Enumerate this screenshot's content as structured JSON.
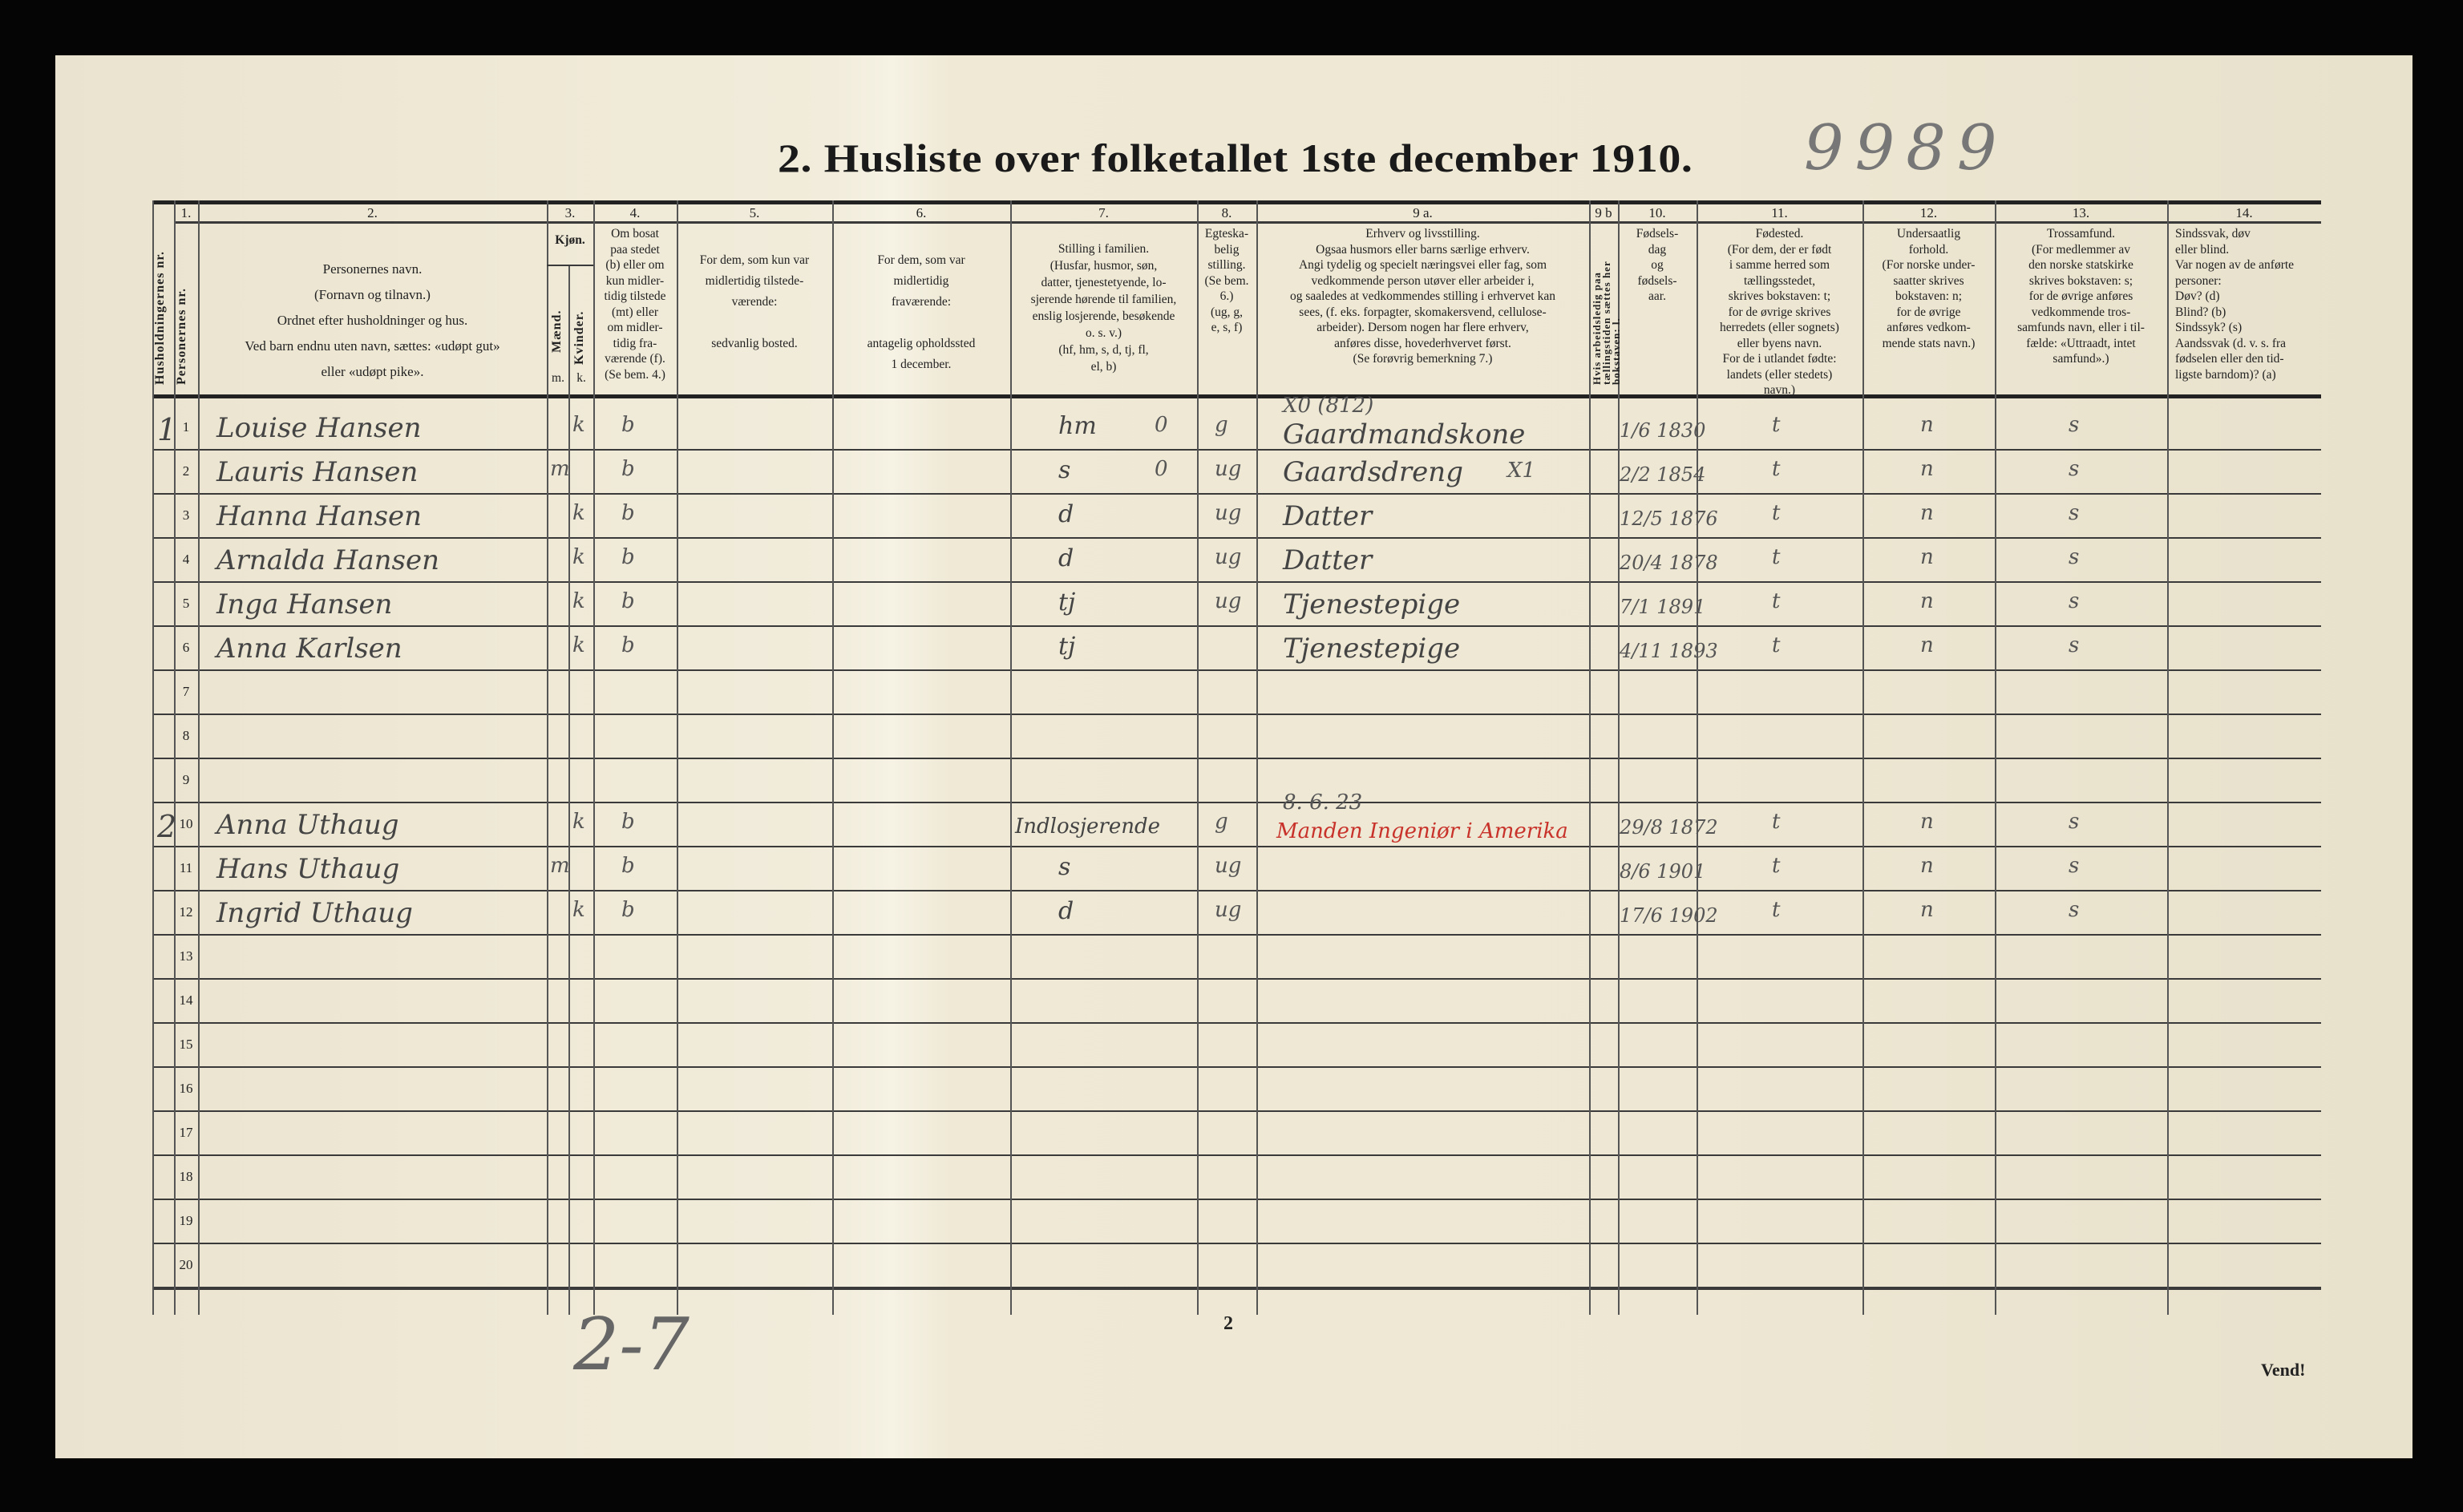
{
  "title": "2.  Husliste over folketallet 1ste december 1910.",
  "pencil_number": "9989",
  "pencil_bottom": "2-7",
  "page_number": "2",
  "turn_over": "Vend!",
  "headers": [
    {
      "key": "household",
      "num": "",
      "vertical": "Husholdningernes nr."
    },
    {
      "key": "person",
      "num": "1.",
      "vertical": "Personernes nr."
    },
    {
      "key": "name",
      "num": "2.",
      "text": "Personernes navn.\n(Fornavn og tilnavn.)\nOrdnet efter husholdninger og hus.\nVed barn endnu uten navn, sættes: «udøpt gut»\neller «udøpt pike»."
    },
    {
      "key": "sex",
      "num": "3.",
      "text": "Kjøn.",
      "sub_m": "Mænd.",
      "sub_k": "Kvinder.",
      "m_label": "m.",
      "k_label": "k."
    },
    {
      "key": "residence",
      "num": "4.",
      "text": "Om bosat\npaa stedet\n(b) eller om\nkun midler-\ntidig tilstede\n(mt) eller\nom midler-\ntidig fra-\nværende (f).\n(Se bem. 4.)"
    },
    {
      "key": "temp_present",
      "num": "5.",
      "text": "For dem, som kun var\nmidlertidig tilstede-\nværende:\n\nsedvanlig bosted."
    },
    {
      "key": "temp_absent",
      "num": "6.",
      "text": "For dem, som var\nmidlertidig\nfraværende:\n\nantagelig opholdssted\n1 december."
    },
    {
      "key": "family",
      "num": "7.",
      "text": "Stilling i familien.\n(Husfar, husmor, søn,\ndatter, tjenestetyende, lo-\nsjerende hørende til familien,\nenslig losjerende, besøkende\no. s. v.)\n(hf, hm, s, d, tj, fl,\nel, b)"
    },
    {
      "key": "marital",
      "num": "8.",
      "text": "Egteska-\nbelig\nstilling.\n(Se bem. 6.)\n(ug, g,\ne, s, f)"
    },
    {
      "key": "occupation",
      "num": "9 a.",
      "text": "Erhverv og livsstilling.\nOgsaa husmors eller barns særlige erhverv.\nAngi tydelig og specielt næringsvei eller fag, som\nvedkommende person utøver eller arbeider i,\nog saaledes at vedkommendes stilling i erhvervet kan\nsees, (f. eks. forpagter, skomakersvend, cellulose-\narbeider). Dersom nogen har flere erhverv,\nanføres disse, hovederhvervet først.\n(Se forøvrig bemerkning 7.)"
    },
    {
      "key": "unemployed",
      "num": "9 b",
      "vertical": "Hvis arbeidsledig paa tællingstiden sættes her bokstaven: l."
    },
    {
      "key": "birth",
      "num": "10.",
      "text": "Fødsels-\ndag\nog\nfødsels-\naar."
    },
    {
      "key": "birthplace",
      "num": "11.",
      "text": "Fødested.\n(For dem, der er født\ni samme herred som\ntællingsstedet,\nskrives bokstaven: t;\nfor de øvrige skrives\nherredets (eller sognets)\neller byens navn.\nFor de i utlandet fødte:\nlandets (eller stedets)\nnavn.)"
    },
    {
      "key": "citizenship",
      "num": "12.",
      "text": "Undersaatlig\nforhold.\n(For norske under-\nsaatter skrives\nbokstaven: n;\nfor de øvrige\nanføres vedkom-\nmende stats navn.)"
    },
    {
      "key": "religion",
      "num": "13.",
      "text": "Trossamfund.\n(For medlemmer av\nden norske statskirke\nskrives bokstaven: s;\nfor de øvrige anføres\nvedkommende tros-\nsamfunds navn, eller i til-\nfælde: «Uttraadt, intet\nsamfund».)"
    },
    {
      "key": "disability",
      "num": "14.",
      "text": "Sindssvak, døv\neller blind.\nVar nogen av de anførte\npersoner:\nDøv?      (d)\nBlind?     (b)\nSindssyk? (s)\nAandssvak (d. v. s. fra\nfødselen eller den tid-\nligste barndom)? (a)"
    }
  ],
  "rows": [
    {
      "person": "1",
      "household": "1",
      "name": "Louise Hansen",
      "sex_k": "k",
      "residence": "b",
      "family": "hm",
      "family_note": "0",
      "marital": "g",
      "occupation_note": "X0 (812)",
      "occupation": "Gaardmandskone",
      "birth": "1/6 1830",
      "birthplace": "t",
      "citizenship": "n",
      "religion": "s"
    },
    {
      "person": "2",
      "name": "Lauris Hansen",
      "sex_m": "m",
      "residence": "b",
      "family": "s",
      "family_note": "0",
      "marital": "ug",
      "occupation_note": "X1",
      "occupation": "Gaardsdreng",
      "birth": "2/2 1854",
      "birthplace": "t",
      "citizenship": "n",
      "religion": "s"
    },
    {
      "person": "3",
      "name": "Hanna Hansen",
      "sex_k": "k",
      "residence": "b",
      "family": "d",
      "marital": "ug",
      "occupation": "Datter",
      "birth": "12/5 1876",
      "birthplace": "t",
      "citizenship": "n",
      "religion": "s"
    },
    {
      "person": "4",
      "name": "Arnalda Hansen",
      "sex_k": "k",
      "residence": "b",
      "family": "d",
      "marital": "ug",
      "occupation": "Datter",
      "birth": "20/4 1878",
      "birthplace": "t",
      "citizenship": "n",
      "religion": "s"
    },
    {
      "person": "5",
      "name": "Inga Hansen",
      "sex_k": "k",
      "residence": "b",
      "family": "tj",
      "marital": "ug",
      "occupation": "Tjenestepige",
      "birth": "7/1 1891",
      "birthplace": "t",
      "citizenship": "n",
      "religion": "s"
    },
    {
      "person": "6",
      "name": "Anna Karlsen",
      "sex_k": "k",
      "residence": "b",
      "family": "tj",
      "occupation": "Tjenestepige",
      "birth": "4/11 1893",
      "birthplace": "t",
      "citizenship": "n",
      "religion": "s"
    },
    {
      "person": "7"
    },
    {
      "person": "8"
    },
    {
      "person": "9"
    },
    {
      "person": "10",
      "household": "2",
      "name": "Anna Uthaug",
      "sex_k": "k",
      "residence": "b",
      "family": "Indlosjerende",
      "marital": "g",
      "occupation_note": "8. 6. 23",
      "occupation_red": "Manden Ingeniør i Amerika",
      "birth": "29/8 1872",
      "birthplace": "t",
      "citizenship": "n",
      "religion": "s"
    },
    {
      "person": "11",
      "name": "Hans Uthaug",
      "sex_m": "m",
      "residence": "b",
      "family": "s",
      "marital": "ug",
      "birth": "8/6 1901",
      "birthplace": "t",
      "citizenship": "n",
      "religion": "s"
    },
    {
      "person": "12",
      "name": "Ingrid Uthaug",
      "sex_k": "k",
      "residence": "b",
      "family": "d",
      "marital": "ug",
      "birth": "17/6 1902",
      "birthplace": "t",
      "citizenship": "n",
      "religion": "s"
    },
    {
      "person": "13"
    },
    {
      "person": "14"
    },
    {
      "person": "15"
    },
    {
      "person": "16"
    },
    {
      "person": "17"
    },
    {
      "person": "18"
    },
    {
      "person": "19"
    },
    {
      "person": "20"
    }
  ],
  "colors": {
    "paper": "#efe9d6",
    "ink": "#222222",
    "pencil": "#444444",
    "red_ink": "#c8322a"
  }
}
